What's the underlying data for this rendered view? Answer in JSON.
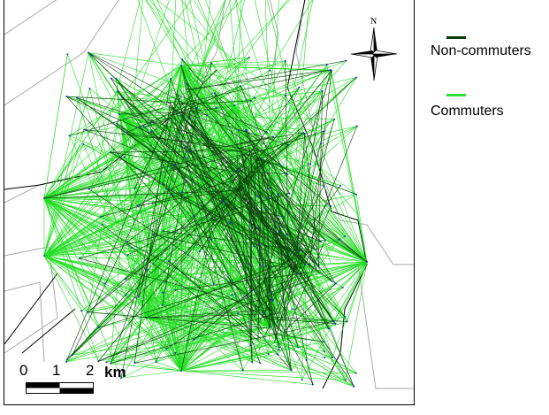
{
  "legend": {
    "items": [
      {
        "label": "Non-commuters",
        "color": "#0b3d0b"
      },
      {
        "label": "Commuters",
        "color": "#33dd33"
      }
    ]
  },
  "north_arrow": {
    "label": "N",
    "icon": "north-arrow-compass-icon"
  },
  "scale_bar": {
    "ticks": [
      "0",
      "1",
      "2"
    ],
    "unit": "km"
  },
  "colors": {
    "commuter_lines": "#22dd22",
    "non_commuter_lines": "#0b3d0b",
    "boundaries": "#aaaaaa",
    "city_boundary": "#000000",
    "points": "#2222cc"
  }
}
